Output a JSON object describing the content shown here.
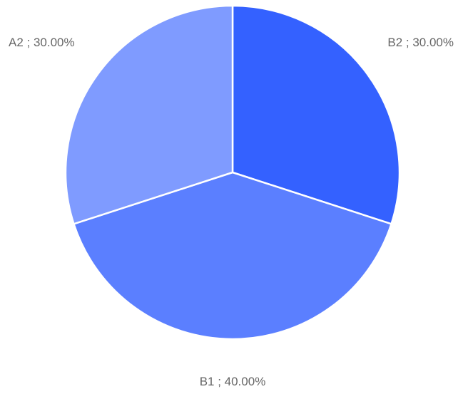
{
  "chart_data": {
    "type": "pie",
    "title": "",
    "slices": [
      {
        "label": "B2 ; 30.00%",
        "value": 30.0,
        "color": "#3461FF"
      },
      {
        "label": "B1 ; 40.00%",
        "value": 40.0,
        "color": "#5B7FFF"
      },
      {
        "label": "A2 ; 30.00%",
        "value": 30.0,
        "color": "#7F9BFF"
      }
    ],
    "start_angle_deg": 0,
    "direction": "clockwise",
    "legend": "none",
    "labels": "outside"
  }
}
